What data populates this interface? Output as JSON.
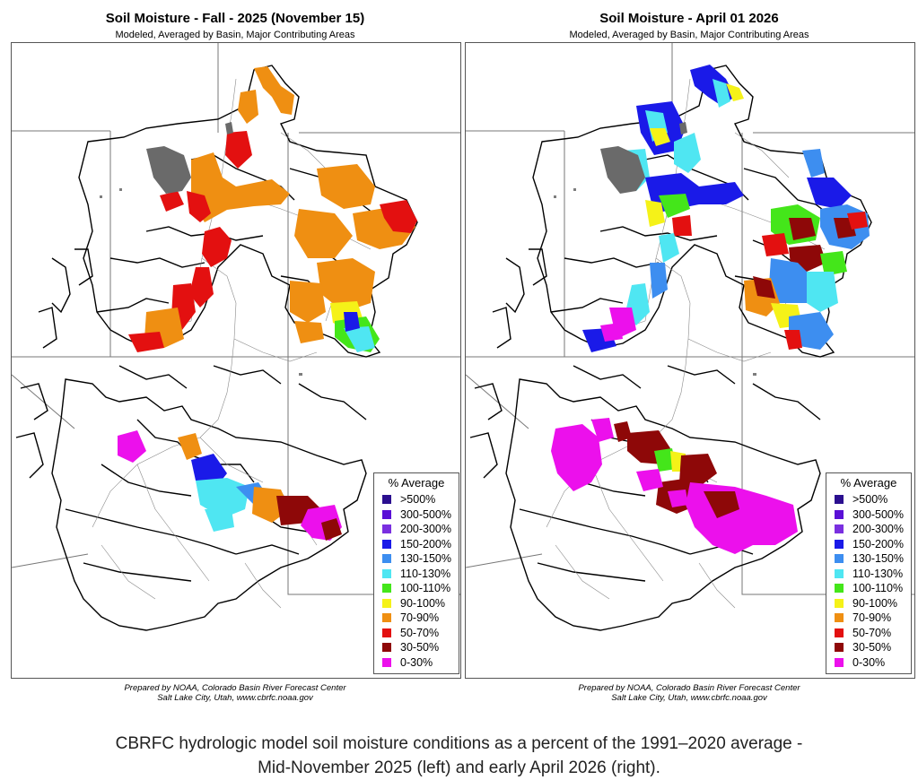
{
  "left": {
    "title": "Soil Moisture - Fall - 2025 (November 15)",
    "subtitle": "Modeled, Averaged by Basin, Major Contributing Areas",
    "footer_line1": "Prepared by NOAA, Colorado Basin River Forecast Center",
    "footer_line2": "Salt Lake City, Utah, www.cbrfc.noaa.gov"
  },
  "right": {
    "title": "Soil Moisture - April 01 2026",
    "subtitle": "Modeled, Averaged by Basin, Major Contributing Areas",
    "footer_line1": "Prepared by NOAA, Colorado Basin River Forecast Center",
    "footer_line2": "Salt Lake City, Utah, www.cbrfc.noaa.gov"
  },
  "legend": {
    "title": "% Average",
    "items": [
      {
        "label": ">500%",
        "color": "#2b0f8f"
      },
      {
        "label": "300-500%",
        "color": "#5a10d6"
      },
      {
        "label": "200-300%",
        "color": "#7a2fe0"
      },
      {
        "label": "150-200%",
        "color": "#1a1ae8"
      },
      {
        "label": "130-150%",
        "color": "#3d8ef0"
      },
      {
        "label": "110-130%",
        "color": "#4fe6f2"
      },
      {
        "label": "100-110%",
        "color": "#44e61a"
      },
      {
        "label": "90-100%",
        "color": "#f5f218"
      },
      {
        "label": "70-90%",
        "color": "#ef8f12"
      },
      {
        "label": "50-70%",
        "color": "#e31010"
      },
      {
        "label": "30-50%",
        "color": "#8e0808"
      },
      {
        "label": "0-30%",
        "color": "#ec10ec"
      }
    ]
  },
  "caption": {
    "line1": "CBRFC hydrologic model soil moisture conditions as a percent of the 1991–2020 average -",
    "line2": "Mid-November 2025 (left) and early April 2026 (right)."
  }
}
